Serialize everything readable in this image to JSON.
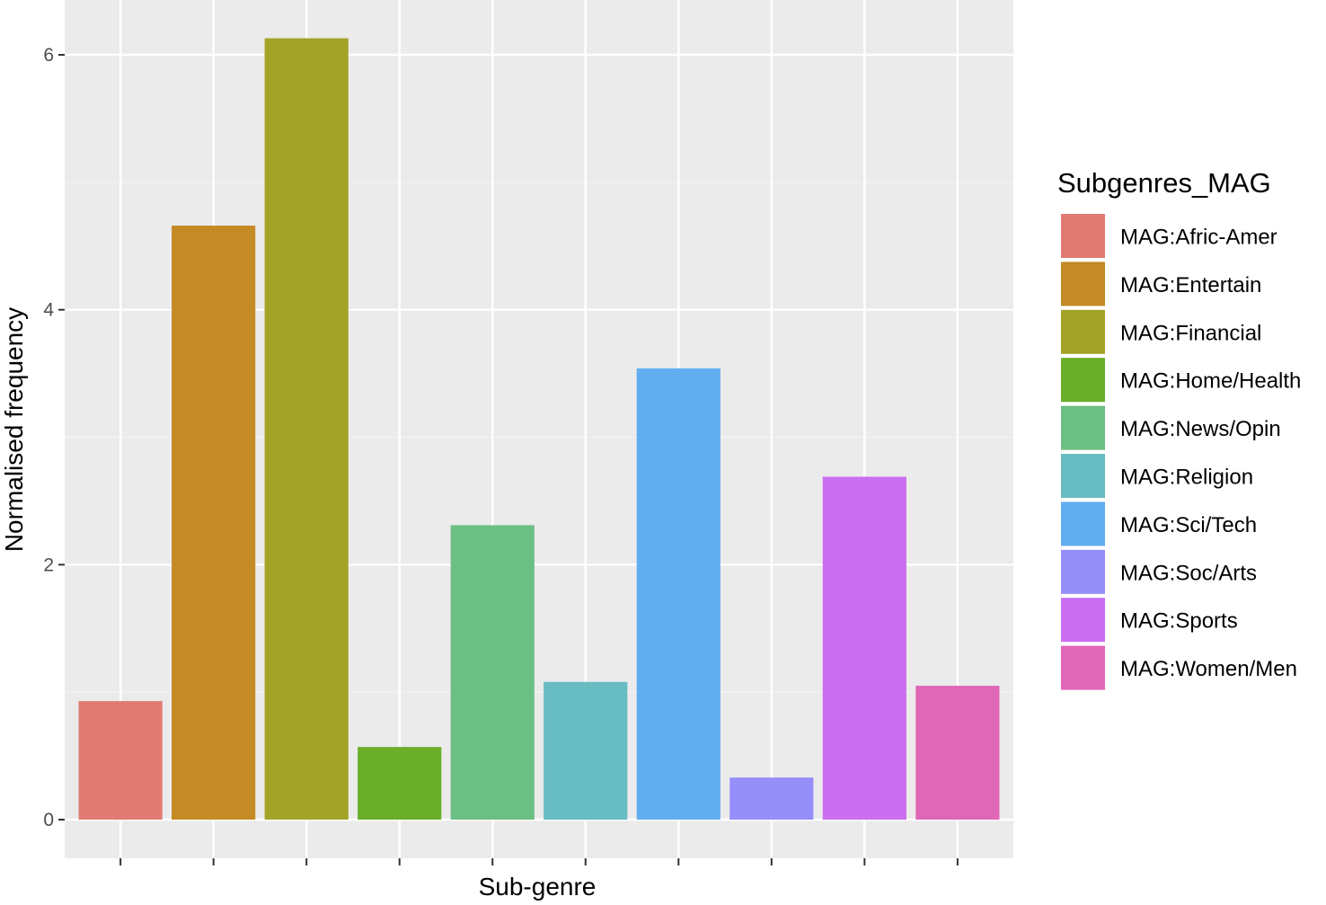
{
  "chart_data": {
    "type": "bar",
    "title": "",
    "xlabel": "Sub-genre",
    "ylabel": "Normalised frequency",
    "ylim": [
      -0.08,
      6.25
    ],
    "yticks": [
      0,
      2,
      4,
      6
    ],
    "ytick_labels": [
      "0",
      "2",
      "4",
      "6"
    ],
    "grid": true,
    "legend_placement": "right",
    "legend_title": "Subgenres_MAG",
    "series": [
      {
        "name": "MAG:Afric-Amer",
        "value": 0.93,
        "color": "#e07b73"
      },
      {
        "name": "MAG:Entertain",
        "value": 4.66,
        "color": "#c48a25"
      },
      {
        "name": "MAG:Financial",
        "value": 6.13,
        "color": "#a3a328"
      },
      {
        "name": "MAG:Home/Health",
        "value": 0.57,
        "color": "#6aae2a"
      },
      {
        "name": "MAG:News/Opin",
        "value": 2.31,
        "color": "#6cbf82"
      },
      {
        "name": "MAG:Religion",
        "value": 1.08,
        "color": "#68bdc3"
      },
      {
        "name": "MAG:Sci/Tech",
        "value": 3.54,
        "color": "#62adf0"
      },
      {
        "name": "MAG:Soc/Arts",
        "value": 0.33,
        "color": "#968ef9"
      },
      {
        "name": "MAG:Sports",
        "value": 2.69,
        "color": "#cb6ef0"
      },
      {
        "name": "MAG:Women/Men",
        "value": 1.05,
        "color": "#e066b8"
      }
    ]
  }
}
